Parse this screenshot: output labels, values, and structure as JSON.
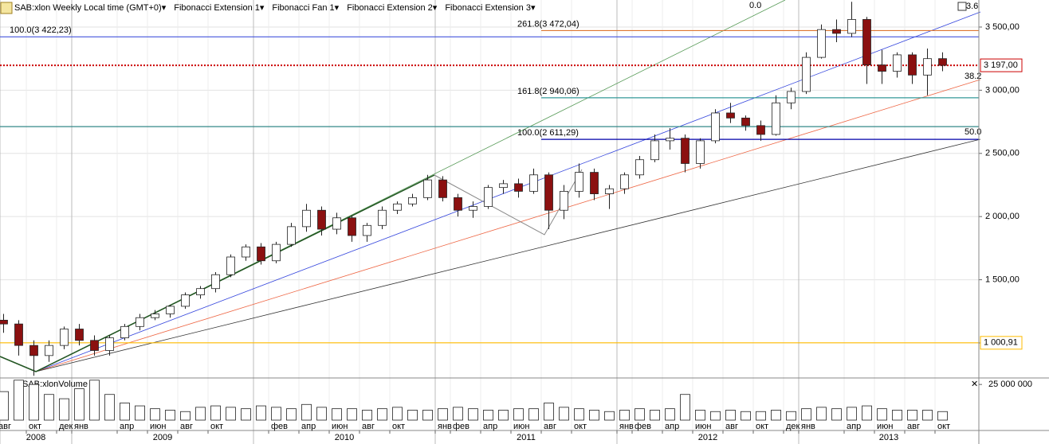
{
  "chart_data": {
    "type": "candlestick",
    "header": [
      "SAB:xlon Weekly Local time (GMT+0)▾",
      "Fibonacci Extension 1▾",
      "Fibonacci Fan 1▾",
      "Fibonacci Extension 2▾",
      "Fibonacci Extension 3▾"
    ],
    "ylim": [
      729,
      3714
    ],
    "yticks": [
      {
        "value": 1000,
        "label": "1 000,00"
      },
      {
        "value": 1500,
        "label": "1 500,00"
      },
      {
        "value": 2000,
        "label": "2 000,00"
      },
      {
        "value": 2500,
        "label": "2 500,00"
      },
      {
        "value": 3000,
        "label": "3 000,00"
      },
      {
        "value": 3500,
        "label": "3 500,00"
      }
    ],
    "candles": {
      "x": [
        "2008-08",
        "2008-09",
        "2008-10",
        "2008-11",
        "2008-12",
        "2009-01",
        "2009-02",
        "2009-03",
        "2009-04",
        "2009-05",
        "2009-06",
        "2009-07",
        "2009-08",
        "2009-09",
        "2009-10",
        "2009-11",
        "2009-12",
        "2010-01",
        "2010-02",
        "2010-03",
        "2010-04",
        "2010-05",
        "2010-06",
        "2010-07",
        "2010-08",
        "2010-09",
        "2010-10",
        "2010-11",
        "2010-12",
        "2011-01",
        "2011-02",
        "2011-03",
        "2011-04",
        "2011-05",
        "2011-06",
        "2011-07",
        "2011-08",
        "2011-09",
        "2011-10",
        "2011-11",
        "2011-12",
        "2012-01",
        "2012-02",
        "2012-03",
        "2012-04",
        "2012-05",
        "2012-06",
        "2012-07",
        "2012-08",
        "2012-09",
        "2012-10",
        "2012-11",
        "2012-12",
        "2013-01",
        "2013-02",
        "2013-03",
        "2013-04",
        "2013-05",
        "2013-06",
        "2013-07",
        "2013-08",
        "2013-09",
        "2013-10"
      ],
      "open": [
        1180,
        1150,
        980,
        900,
        980,
        1110,
        1020,
        940,
        1040,
        1130,
        1200,
        1230,
        1290,
        1380,
        1430,
        1540,
        1680,
        1760,
        1650,
        1780,
        1920,
        2050,
        1900,
        1990,
        1850,
        1930,
        2050,
        2100,
        2150,
        2290,
        2150,
        2050,
        2080,
        2230,
        2260,
        2200,
        2330,
        2050,
        2200,
        2350,
        2180,
        2220,
        2330,
        2450,
        2600,
        2620,
        2420,
        2600,
        2820,
        2780,
        2720,
        2650,
        2900,
        2990,
        3260,
        3480,
        3450,
        3560,
        3200,
        3150,
        3280,
        3120,
        3250
      ],
      "high": [
        1230,
        1180,
        1020,
        1020,
        1130,
        1150,
        1060,
        1060,
        1150,
        1230,
        1260,
        1300,
        1400,
        1450,
        1560,
        1700,
        1780,
        1790,
        1800,
        1950,
        2100,
        2080,
        2030,
        2010,
        1950,
        2080,
        2120,
        2180,
        2330,
        2320,
        2180,
        2120,
        2250,
        2290,
        2300,
        2380,
        2350,
        2250,
        2420,
        2380,
        2250,
        2350,
        2480,
        2650,
        2700,
        2650,
        2620,
        2850,
        2900,
        2800,
        2760,
        2960,
        3020,
        3300,
        3520,
        3560,
        3700,
        3580,
        3320,
        3300,
        3300,
        3330,
        3300
      ],
      "low": [
        1080,
        900,
        740,
        850,
        950,
        980,
        900,
        900,
        1020,
        1100,
        1180,
        1200,
        1270,
        1350,
        1400,
        1520,
        1650,
        1620,
        1630,
        1760,
        1880,
        1850,
        1860,
        1800,
        1800,
        1900,
        2020,
        2080,
        2130,
        2120,
        2000,
        1990,
        2060,
        2180,
        2150,
        2180,
        1900,
        1980,
        2150,
        2130,
        2060,
        2180,
        2300,
        2430,
        2530,
        2350,
        2380,
        2580,
        2740,
        2680,
        2600,
        2640,
        2850,
        2970,
        3250,
        3380,
        3420,
        3050,
        3050,
        3100,
        3050,
        2960,
        3150
      ],
      "close": [
        1150,
        980,
        900,
        980,
        1110,
        1020,
        940,
        1040,
        1130,
        1200,
        1230,
        1290,
        1380,
        1430,
        1540,
        1680,
        1760,
        1650,
        1780,
        1920,
        2050,
        1900,
        1990,
        1850,
        1930,
        2050,
        2100,
        2150,
        2290,
        2150,
        2050,
        2080,
        2230,
        2260,
        2200,
        2330,
        2050,
        2200,
        2350,
        2180,
        2220,
        2330,
        2450,
        2600,
        2620,
        2420,
        2600,
        2820,
        2780,
        2720,
        2650,
        2900,
        2990,
        3260,
        3480,
        3450,
        3560,
        3200,
        3150,
        3280,
        3120,
        3250,
        3197
      ]
    },
    "volume": {
      "title": "SAB:xlonVolume",
      "ylim": [
        0,
        29000000
      ],
      "yticks": [
        {
          "value": 25000000,
          "label": "25 000 000"
        }
      ],
      "values": [
        20000000,
        28000000,
        25000000,
        18000000,
        15000000,
        22000000,
        28000000,
        18000000,
        12000000,
        10000000,
        8000000,
        7000000,
        6000000,
        9000000,
        10000000,
        9000000,
        8000000,
        10000000,
        9000000,
        8000000,
        11000000,
        9000000,
        8000000,
        8000000,
        7000000,
        8000000,
        9000000,
        7000000,
        7000000,
        8000000,
        9000000,
        8000000,
        7000000,
        7000000,
        8000000,
        8000000,
        12000000,
        9000000,
        8000000,
        7000000,
        6000000,
        7000000,
        8000000,
        7000000,
        8000000,
        18000000,
        7000000,
        6000000,
        7000000,
        6000000,
        6000000,
        7000000,
        6000000,
        8000000,
        9000000,
        8000000,
        9000000,
        10000000,
        8000000,
        7000000,
        7000000,
        7000000,
        6000000
      ]
    },
    "xticks": [
      {
        "value": "2008-08",
        "label": "авг"
      },
      {
        "value": "2008-10",
        "label": "окт"
      },
      {
        "value": "2008-12",
        "label": "дек"
      },
      {
        "value": "2009-01",
        "label": "янв"
      },
      {
        "value": "2009-04",
        "label": "апр"
      },
      {
        "value": "2009-06",
        "label": "июн"
      },
      {
        "value": "2009-08",
        "label": "авг"
      },
      {
        "value": "2009-10",
        "label": "окт"
      },
      {
        "value": "2010-02",
        "label": "фев"
      },
      {
        "value": "2010-04",
        "label": "апр"
      },
      {
        "value": "2010-06",
        "label": "июн"
      },
      {
        "value": "2010-08",
        "label": "авг"
      },
      {
        "value": "2010-10",
        "label": "окт"
      },
      {
        "value": "2011-01",
        "label": "янв"
      },
      {
        "value": "2011-02",
        "label": "фев"
      },
      {
        "value": "2011-04",
        "label": "апр"
      },
      {
        "value": "2011-06",
        "label": "июн"
      },
      {
        "value": "2011-08",
        "label": "авг"
      },
      {
        "value": "2011-10",
        "label": "окт"
      },
      {
        "value": "2012-01",
        "label": "янв"
      },
      {
        "value": "2012-02",
        "label": "фев"
      },
      {
        "value": "2012-04",
        "label": "апр"
      },
      {
        "value": "2012-06",
        "label": "июн"
      },
      {
        "value": "2012-08",
        "label": "авг"
      },
      {
        "value": "2012-10",
        "label": "окт"
      },
      {
        "value": "2012-12",
        "label": "дек"
      },
      {
        "value": "2013-01",
        "label": "янв"
      },
      {
        "value": "2013-04",
        "label": "апр"
      },
      {
        "value": "2013-06",
        "label": "июн"
      },
      {
        "value": "2013-08",
        "label": "авг"
      },
      {
        "value": "2013-10",
        "label": "окт"
      }
    ],
    "years": [
      "2008",
      "2009",
      "2010",
      "2011",
      "2012",
      "2013"
    ],
    "levels": [
      {
        "value": 3422.23,
        "label": "100.0(3 422,23)",
        "color": "#4455dd",
        "from": "2008-08"
      },
      {
        "value": 3472.04,
        "label": "261.8(3 472,04)",
        "color": "#dd7733",
        "from": "2011-08"
      },
      {
        "value": 2940.06,
        "label": "161.8(2 940,06)",
        "color": "#339999",
        "from": "2011-08"
      },
      {
        "value": 2611.29,
        "label": "100.0(2 611,29)",
        "color": "#0000aa",
        "from": "2011-08"
      },
      {
        "value": 2712,
        "color": "#338888",
        "from": "2008-08"
      },
      {
        "value": 1000.91,
        "label": "1 000,91",
        "color": "#ffbb00",
        "from": "2008-08",
        "box": true
      },
      {
        "value": 3197,
        "label": "3 197,00",
        "color": "#cc0000",
        "from": "2008-08",
        "box": true,
        "dotted": true
      }
    ],
    "fan_labels": [
      "0.0",
      "38.2",
      "50.0",
      "3.6"
    ]
  }
}
